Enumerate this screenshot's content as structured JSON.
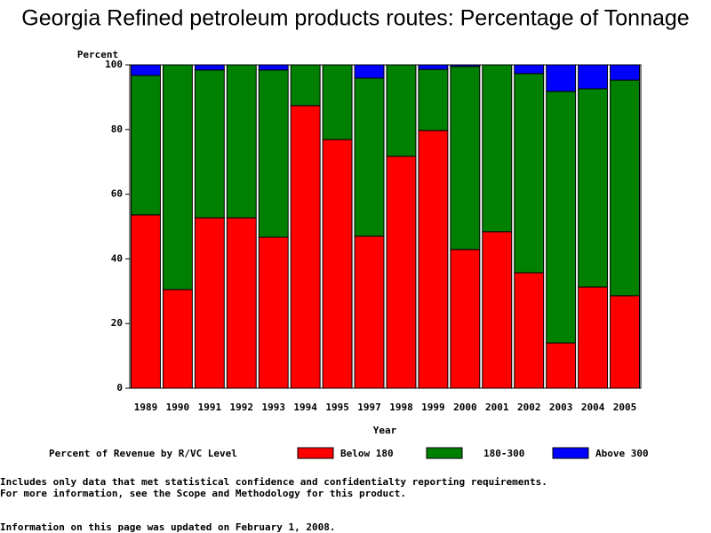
{
  "chart_data": {
    "type": "stacked_bar",
    "title": "Georgia Refined petroleum products routes: Percentage of Tonnage",
    "y_label": "Percent",
    "x_label": "Year",
    "legend_title": "Percent of Revenue by R/VC Level",
    "categories": [
      "1989",
      "1990",
      "1991",
      "1992",
      "1993",
      "1994",
      "1995",
      "1997",
      "1998",
      "1999",
      "2000",
      "2001",
      "2002",
      "2003",
      "2004",
      "2005"
    ],
    "series": [
      {
        "name": "Below 180",
        "color": "#ff0000",
        "values": [
          53.6,
          30.5,
          52.7,
          52.7,
          46.7,
          87.4,
          76.9,
          47.0,
          71.7,
          79.7,
          42.9,
          48.4,
          35.7,
          14.0,
          31.3,
          28.6
        ]
      },
      {
        "name": "180-300",
        "color": "#008000",
        "values": [
          43.1,
          69.5,
          45.7,
          47.3,
          51.7,
          12.6,
          23.1,
          48.9,
          28.3,
          18.9,
          56.6,
          51.6,
          61.6,
          77.8,
          61.3,
          66.7
        ]
      },
      {
        "name": "Above 300",
        "color": "#0000ff",
        "values": [
          3.3,
          0,
          1.6,
          0,
          1.6,
          0,
          0,
          4.1,
          0,
          1.4,
          0.5,
          0,
          2.7,
          8.2,
          7.4,
          4.7
        ]
      }
    ],
    "ylim": [
      0,
      100
    ],
    "yticks": [
      0,
      20,
      40,
      60,
      80,
      100
    ]
  },
  "footnotes": [
    "Includes only data that met statistical confidence and confidentialty reporting requirements.",
    "For more information, see the Scope and Methodology for this product.",
    "Information on this page was updated on February 1, 2008."
  ]
}
